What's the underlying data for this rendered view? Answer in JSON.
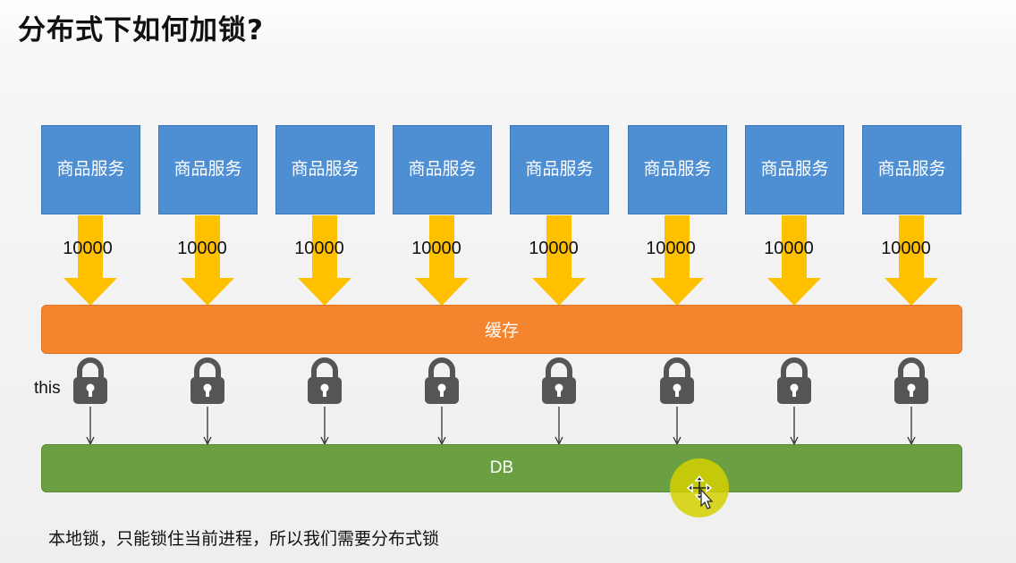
{
  "title": "分布式下如何加锁?",
  "services": [
    {
      "label": "商品服务",
      "count": "10000"
    },
    {
      "label": "商品服务",
      "count": "10000"
    },
    {
      "label": "商品服务",
      "count": "10000"
    },
    {
      "label": "商品服务",
      "count": "10000"
    },
    {
      "label": "商品服务",
      "count": "10000"
    },
    {
      "label": "商品服务",
      "count": "10000"
    },
    {
      "label": "商品服务",
      "count": "10000"
    },
    {
      "label": "商品服务",
      "count": "10000"
    }
  ],
  "cache_label": "缓存",
  "db_label": "DB",
  "lock_label": "this",
  "note": "本地锁，只能锁住当前进程，所以我们需要分布式锁",
  "colors": {
    "service": "#4e8fd3",
    "arrow": "#ffc000",
    "cache": "#f5842e",
    "db": "#6aa042",
    "lock": "#555555"
  },
  "icons": {
    "lock": "padlock-icon",
    "cursor": "move-cursor-icon"
  }
}
